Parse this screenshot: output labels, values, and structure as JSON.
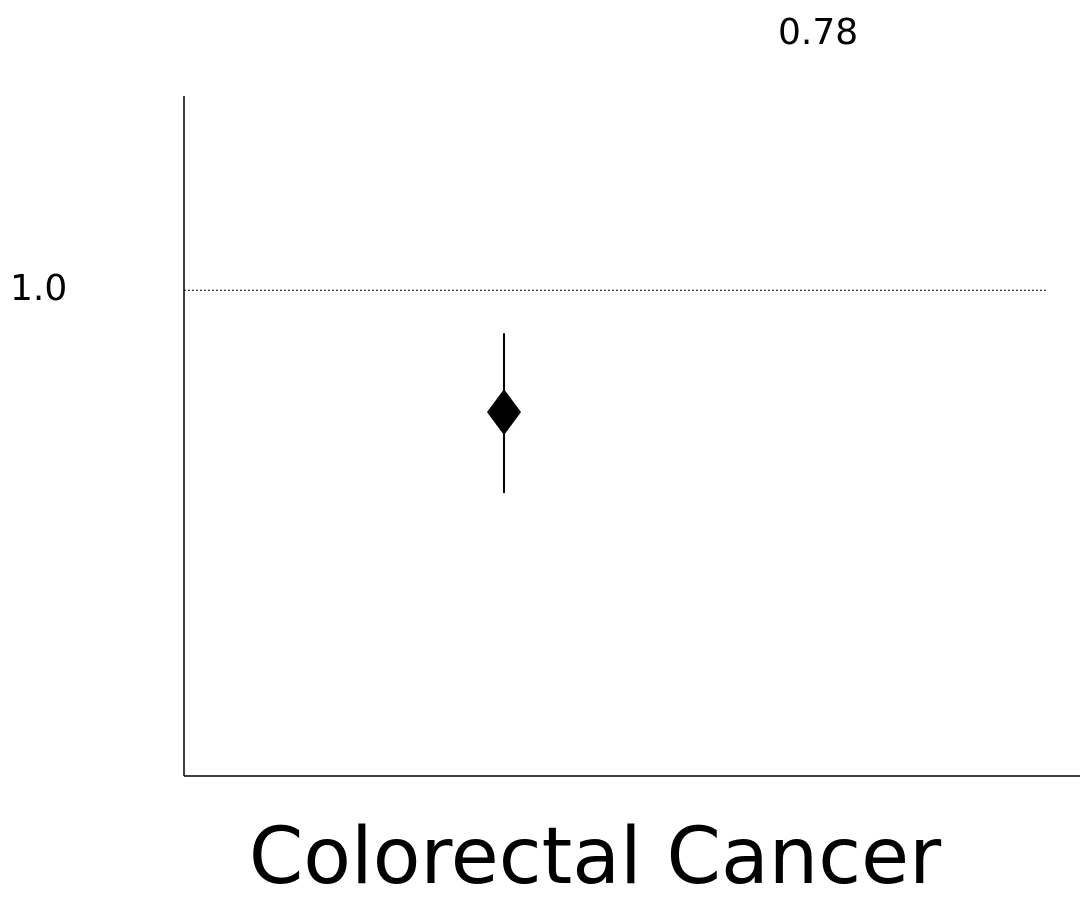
{
  "chart_data": {
    "type": "scatter",
    "categories": [
      "Colorectal Cancer"
    ],
    "point_label": "0.78",
    "series": [
      {
        "point": 0.78,
        "ci_low": 0.56,
        "ci_high": 1.0
      }
    ],
    "reference_line": {
      "value": 1.0,
      "label": "1.0",
      "style": "dotted"
    },
    "ylim": [
      0.0,
      1.4
    ],
    "xlabel": "Colorectal Cancer",
    "ylabel": "",
    "title": "",
    "grid": false,
    "legend": "none",
    "colors": {
      "marker": "#000000",
      "axis": "#000000",
      "reference": "#000000"
    }
  }
}
